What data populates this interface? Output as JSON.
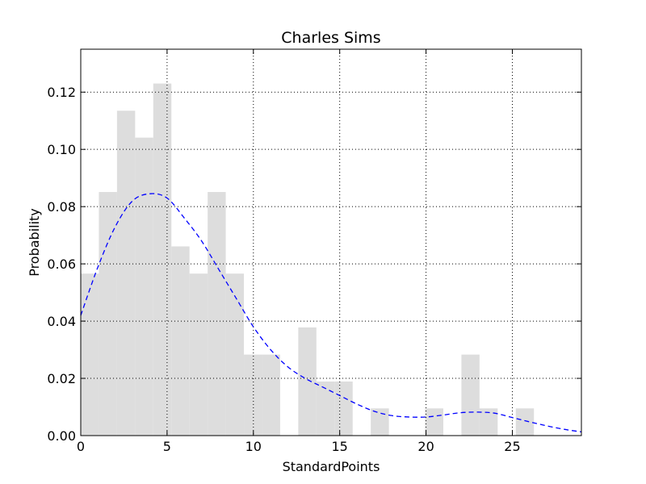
{
  "chart_data": {
    "type": "bar",
    "title": "Charles Sims",
    "xlabel": "StandardPoints",
    "ylabel": "Probability",
    "xlim": [
      0,
      29
    ],
    "ylim": [
      0,
      0.135
    ],
    "grid": true,
    "bar_color": "#dddddd",
    "line_color": "#0000ff",
    "x_ticks": [
      0,
      5,
      10,
      15,
      20,
      25
    ],
    "x_tick_labels": [
      "0",
      "5",
      "10",
      "15",
      "20",
      "25"
    ],
    "y_ticks": [
      0,
      0.02,
      0.04,
      0.06,
      0.08,
      0.1,
      0.12
    ],
    "y_tick_labels": [
      "0.00",
      "0.02",
      "0.04",
      "0.06",
      "0.08",
      "0.10",
      "0.12"
    ],
    "histogram": {
      "bin_edges": [
        0,
        1.05,
        2.1,
        3.15,
        4.2,
        5.25,
        6.3,
        7.35,
        8.4,
        9.45,
        10.5,
        11.55,
        12.6,
        13.65,
        14.7,
        15.75,
        16.8,
        17.85,
        18.9,
        19.95,
        21.0,
        22.05,
        23.1,
        24.15,
        25.2,
        26.25
      ],
      "values": [
        0.0566,
        0.0851,
        0.1135,
        0.1041,
        0.123,
        0.0661,
        0.0566,
        0.0851,
        0.0566,
        0.0283,
        0.0283,
        0,
        0.0378,
        0.0189,
        0.0189,
        0,
        0.0095,
        0,
        0,
        0.0095,
        0,
        0.0283,
        0.0095,
        0,
        0.0095
      ]
    },
    "series": [
      {
        "type": "line",
        "style": "dashed",
        "x": [
          0,
          1,
          2,
          3,
          4,
          5,
          6,
          7,
          8,
          9,
          10,
          11,
          12,
          13,
          14,
          15,
          16,
          17,
          18,
          19,
          20,
          21,
          22,
          23,
          24,
          25,
          26,
          27,
          28,
          29
        ],
        "values": [
          0.042,
          0.059,
          0.073,
          0.082,
          0.0845,
          0.083,
          0.076,
          0.068,
          0.058,
          0.048,
          0.038,
          0.03,
          0.024,
          0.02,
          0.017,
          0.014,
          0.011,
          0.0085,
          0.007,
          0.0065,
          0.0065,
          0.0072,
          0.008,
          0.0082,
          0.0078,
          0.0063,
          0.0048,
          0.0034,
          0.0022,
          0.0013
        ]
      }
    ]
  }
}
